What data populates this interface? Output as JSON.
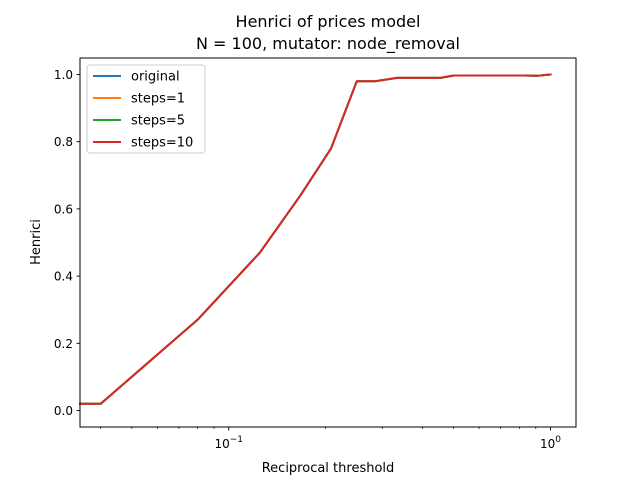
{
  "chart_data": {
    "type": "line",
    "title": "Henrici of prices model",
    "subtitle": "N = 100, mutator: node_removal",
    "xlabel": "Reciprocal threshold",
    "ylabel": "Henrici",
    "xscale": "log",
    "xlim": [
      0.0345,
      1.2
    ],
    "ylim": [
      -0.049,
      1.049
    ],
    "grid": false,
    "legend_position": "top-left",
    "x_ticks": [
      {
        "value": 0.1,
        "base": "10",
        "exp": "−1"
      },
      {
        "value": 1.0,
        "base": "10",
        "exp": "0"
      }
    ],
    "y_ticks": [
      {
        "value": 0.0,
        "label": "0.0"
      },
      {
        "value": 0.2,
        "label": "0.2"
      },
      {
        "value": 0.4,
        "label": "0.4"
      },
      {
        "value": 0.6,
        "label": "0.6"
      },
      {
        "value": 0.8,
        "label": "0.8"
      },
      {
        "value": 1.0,
        "label": "1.0"
      }
    ],
    "x": [
      0.0345,
      0.04,
      0.08,
      0.125,
      0.167,
      0.208,
      0.25,
      0.286,
      0.333,
      0.455,
      0.5,
      0.833,
      0.909,
      1.0
    ],
    "series": [
      {
        "name": "original",
        "color": "#1f77b4",
        "values": [
          0.02,
          0.02,
          0.27,
          0.47,
          0.64,
          0.78,
          0.98,
          0.98,
          0.99,
          0.99,
          0.997,
          0.997,
          0.996,
          1.0
        ]
      },
      {
        "name": "steps=1",
        "color": "#ff7f0e",
        "values": [
          0.02,
          0.02,
          0.27,
          0.47,
          0.64,
          0.78,
          0.98,
          0.98,
          0.99,
          0.99,
          0.997,
          0.997,
          0.996,
          1.0
        ]
      },
      {
        "name": "steps=5",
        "color": "#2ca02c",
        "values": [
          0.02,
          0.02,
          0.27,
          0.47,
          0.64,
          0.78,
          0.98,
          0.98,
          0.99,
          0.99,
          0.997,
          0.997,
          0.996,
          1.0
        ]
      },
      {
        "name": "steps=10",
        "color": "#d62728",
        "values": [
          0.02,
          0.02,
          0.27,
          0.47,
          0.64,
          0.78,
          0.98,
          0.98,
          0.99,
          0.99,
          0.997,
          0.997,
          0.996,
          1.0
        ]
      }
    ]
  }
}
